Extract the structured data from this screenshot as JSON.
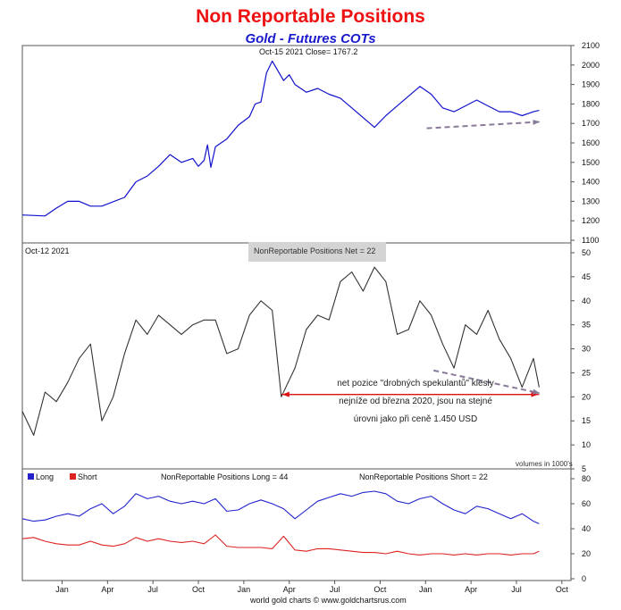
{
  "title": "Non Reportable Positions",
  "subtitle": "Gold - Futures COTs",
  "footer": "world gold charts © www.goldchartsrus.com",
  "colors": {
    "price": "#1111cc",
    "net": "#333333",
    "long": "#2222cc",
    "short": "#dd2222",
    "arrow": "#dd1111",
    "trend": "#8a7a99"
  },
  "chart_data": [
    {
      "type": "line",
      "name": "price-panel",
      "header": "Oct-15  2021   Close= 1767.2",
      "ylim": [
        1100,
        2100
      ],
      "yticks": [
        1100,
        1200,
        1300,
        1400,
        1500,
        1600,
        1700,
        1800,
        1900,
        2000,
        2100
      ],
      "x": [
        0,
        2,
        3,
        4,
        5,
        6,
        7,
        9,
        10,
        11,
        12,
        13,
        14,
        15,
        15.5,
        16,
        16.3,
        16.6,
        17,
        18,
        19,
        20,
        20.5,
        21,
        21.5,
        22,
        23,
        23.5,
        24,
        25,
        26,
        27,
        28,
        29,
        30,
        31,
        32,
        33,
        34,
        35,
        36,
        37,
        38,
        39,
        40,
        41,
        42,
        43,
        44,
        45,
        45.5
      ],
      "values": [
        1230,
        1225,
        1265,
        1300,
        1300,
        1275,
        1275,
        1320,
        1400,
        1430,
        1480,
        1540,
        1500,
        1520,
        1480,
        1510,
        1590,
        1475,
        1580,
        1620,
        1690,
        1735,
        1800,
        1810,
        1960,
        2020,
        1920,
        1950,
        1900,
        1860,
        1880,
        1850,
        1830,
        1780,
        1730,
        1680,
        1740,
        1790,
        1840,
        1890,
        1850,
        1780,
        1760,
        1790,
        1820,
        1790,
        1760,
        1760,
        1740,
        1760,
        1767
      ],
      "trendline": {
        "x": [
          35.6,
          45.5
        ],
        "values": [
          1675,
          1708
        ]
      }
    },
    {
      "type": "line",
      "name": "net-panel",
      "header_date": "Oct-12  2021",
      "label": "NonReportable Positions Net = 22",
      "ylim": [
        5,
        50
      ],
      "yticks": [
        5,
        10,
        15,
        20,
        25,
        30,
        35,
        40,
        45,
        50
      ],
      "units_note": "volumes in 1000's",
      "x": [
        0,
        1,
        2,
        3,
        4,
        5,
        6,
        7,
        8,
        9,
        10,
        11,
        12,
        13,
        14,
        15,
        16,
        17,
        18,
        19,
        20,
        21,
        22,
        22.8,
        24,
        25,
        26,
        27,
        28,
        29,
        30,
        31,
        32,
        33,
        34,
        35,
        36,
        37,
        38,
        39,
        40,
        41,
        42,
        43,
        44,
        45,
        45.5
      ],
      "values": [
        17,
        12,
        21,
        19,
        23,
        28,
        31,
        15,
        20,
        29,
        36,
        33,
        37,
        35,
        33,
        35,
        36,
        36,
        29,
        30,
        37,
        40,
        38,
        20,
        26,
        34,
        37,
        36,
        44,
        46,
        42,
        47,
        44,
        33,
        34,
        40,
        37,
        31,
        26,
        35,
        33,
        38,
        32,
        28,
        22,
        28,
        22
      ],
      "annotation": "net pozice \"drobných spekulantů\" klesly nejníže od března 2020, jsou na stejné úrovni jako při ceně 1.450 USD",
      "annotation_lines": [
        "net pozice \"drobných spekulantů\" klesly",
        "nejníže od března 2020, jsou na stejné",
        "úrovni jako při ceně 1.450 USD"
      ],
      "level_arrow": {
        "x": [
          22.8,
          45.5
        ],
        "value": 20.5
      },
      "trendline": {
        "x": [
          36.2,
          45.5
        ],
        "values": [
          25.5,
          20.8
        ]
      }
    },
    {
      "type": "line",
      "name": "long-short-panel",
      "legend": [
        "Long",
        "Short"
      ],
      "label_long": "NonReportable Positions Long = 44",
      "label_short": "NonReportable Positions Short = 22",
      "ylim": [
        0,
        80
      ],
      "yticks": [
        0,
        20,
        40,
        60,
        80
      ],
      "x": [
        0,
        1,
        2,
        3,
        4,
        5,
        6,
        7,
        8,
        9,
        10,
        11,
        12,
        13,
        14,
        15,
        16,
        17,
        18,
        19,
        20,
        21,
        22,
        23,
        24,
        25,
        26,
        27,
        28,
        29,
        30,
        31,
        32,
        33,
        34,
        35,
        36,
        37,
        38,
        39,
        40,
        41,
        42,
        43,
        44,
        45,
        45.5
      ],
      "series": [
        {
          "name": "Long",
          "values": [
            48,
            46,
            47,
            50,
            52,
            50,
            56,
            60,
            52,
            58,
            68,
            64,
            66,
            62,
            60,
            62,
            60,
            64,
            54,
            55,
            60,
            63,
            60,
            56,
            48,
            55,
            62,
            65,
            68,
            66,
            69,
            70,
            68,
            62,
            60,
            64,
            66,
            60,
            55,
            52,
            58,
            56,
            52,
            48,
            52,
            46,
            44
          ]
        },
        {
          "name": "Short",
          "values": [
            32,
            33,
            30,
            28,
            27,
            27,
            30,
            27,
            26,
            28,
            33,
            30,
            32,
            30,
            29,
            30,
            28,
            35,
            26,
            25,
            25,
            25,
            24,
            34,
            23,
            22,
            24,
            24,
            23,
            22,
            21,
            21,
            20,
            22,
            20,
            19,
            20,
            20,
            19,
            20,
            19,
            20,
            20,
            19,
            20,
            20,
            22
          ]
        }
      ]
    }
  ],
  "x_axis": {
    "tick_labels": [
      "Jan",
      "Apr",
      "Jul",
      "Oct",
      "Jan",
      "Apr",
      "Jul",
      "Oct",
      "Jan",
      "Apr",
      "Jul",
      "Oct"
    ],
    "tick_positions": [
      3.5,
      7.5,
      11.5,
      15.5,
      19.5,
      23.5,
      27.5,
      31.5,
      35.5,
      39.5,
      43.5,
      47.5
    ]
  }
}
